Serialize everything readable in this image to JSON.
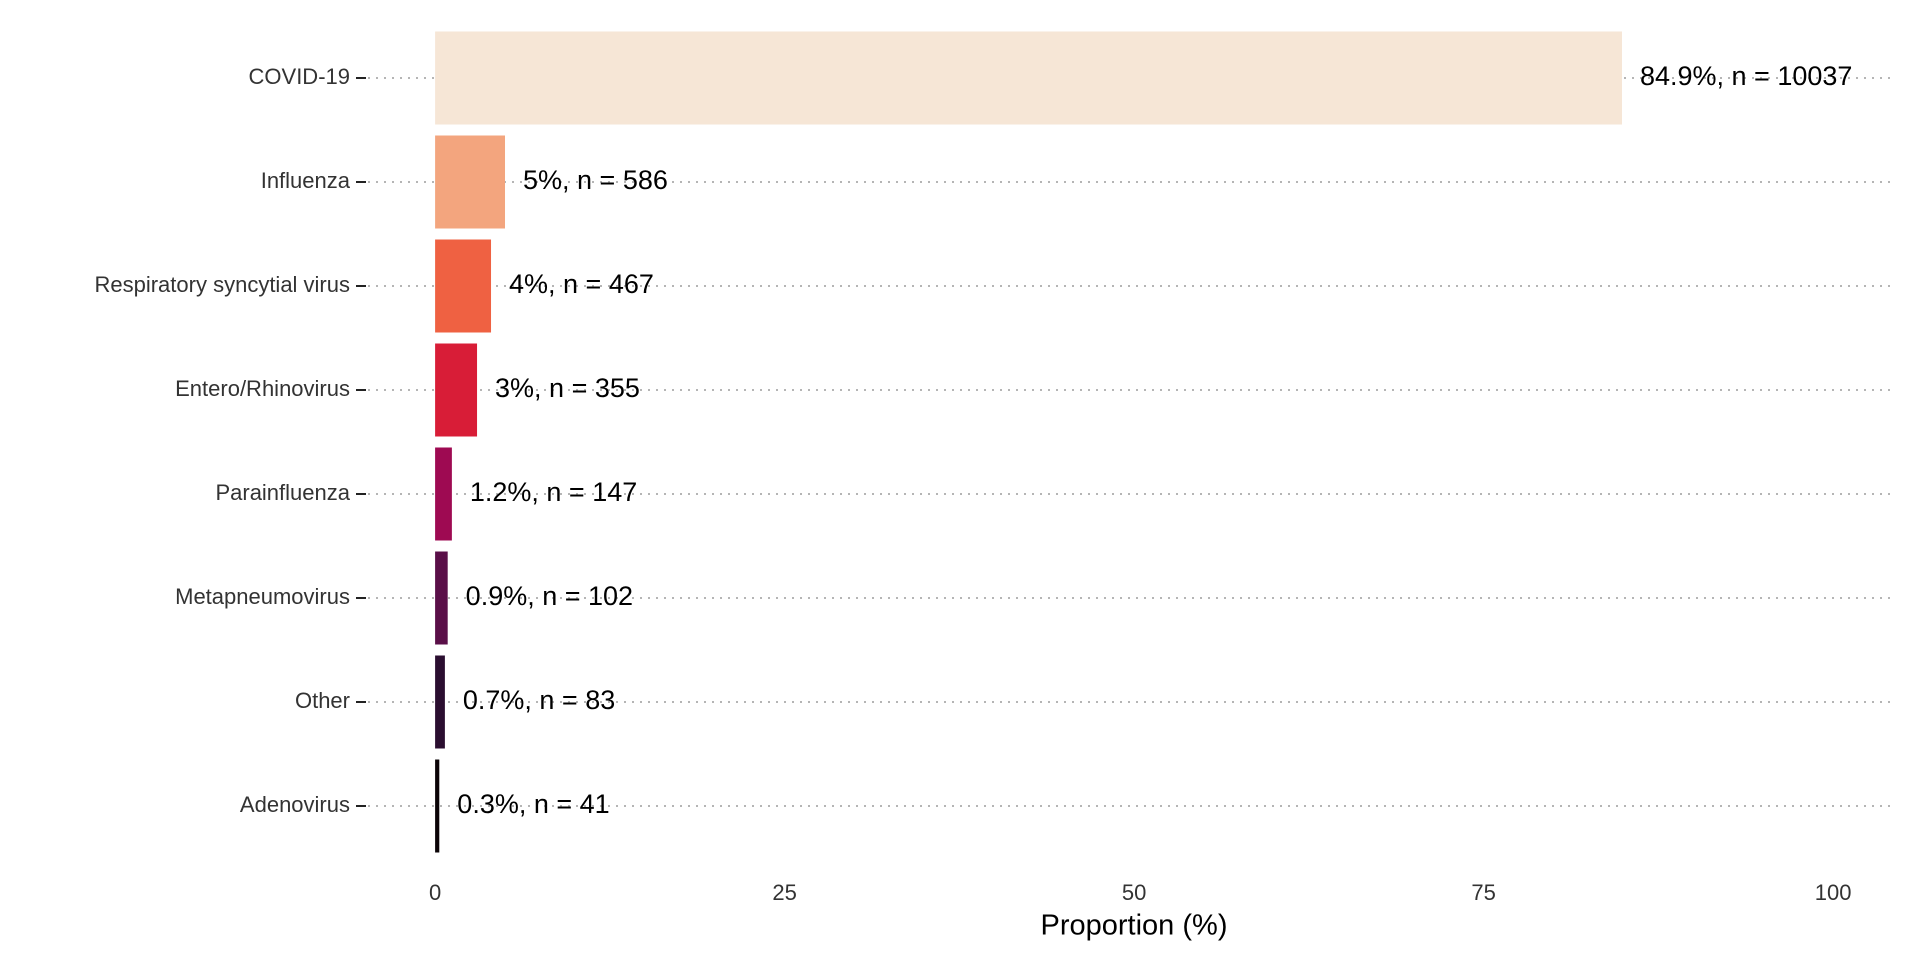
{
  "chart_data": {
    "type": "bar",
    "orientation": "horizontal",
    "x_label": "Proportion (%)",
    "categories": [
      "COVID-19",
      "Influenza",
      "Respiratory syncytial virus",
      "Entero/Rhinovirus",
      "Parainfluenza",
      "Metapneumovirus",
      "Other",
      "Adenovirus"
    ],
    "values": [
      84.9,
      5,
      4,
      3,
      1.2,
      0.9,
      0.7,
      0.3
    ],
    "value_labels": [
      "84.9%, n = 10037",
      "5%, n = 586",
      "4%, n = 467",
      "3%, n = 355",
      "1.2%, n = 147",
      "0.9%, n = 102",
      "0.7%, n = 83",
      "0.3%, n = 41"
    ],
    "colors": [
      "#f6e6d6",
      "#f3a57e",
      "#ef6142",
      "#d81d37",
      "#9e0a52",
      "#5a0f48",
      "#2b0e30",
      "#0b0407"
    ],
    "xlim": [
      -4.8,
      104.5
    ],
    "xticks": [
      0,
      25,
      50,
      75,
      100
    ],
    "grid": true
  }
}
